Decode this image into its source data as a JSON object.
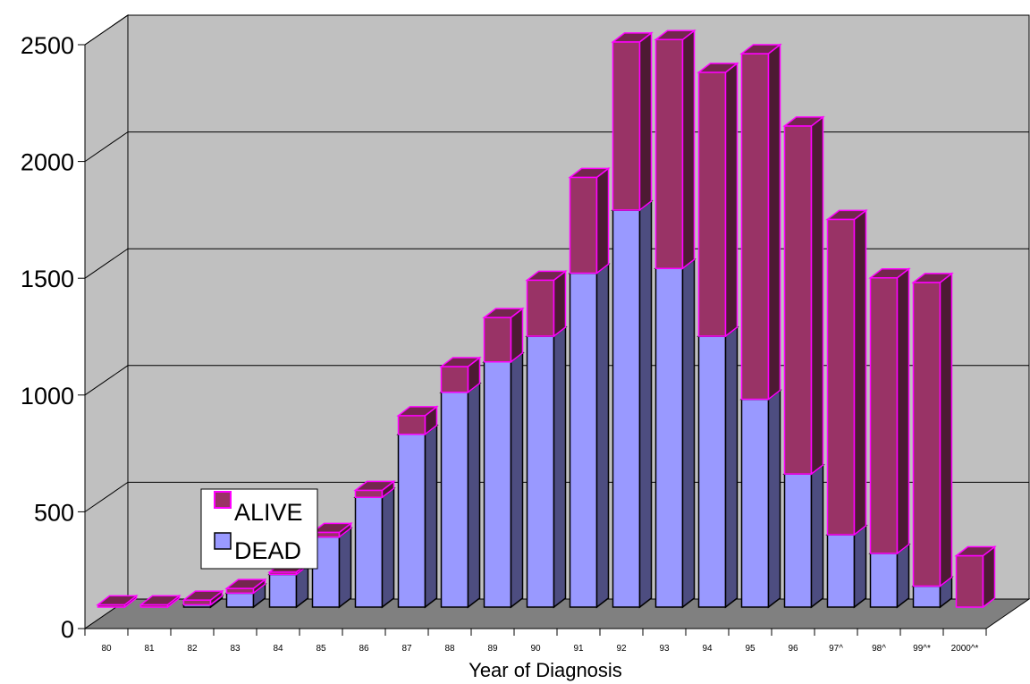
{
  "chart_data": {
    "type": "bar",
    "stacked": true,
    "three_d": true,
    "title": "",
    "xlabel": "Year of Diagnosis",
    "ylabel": "",
    "ylim": [
      0,
      2500
    ],
    "yticks": [
      "0",
      "500",
      "1000",
      "1500",
      "2000",
      "2500"
    ],
    "categories": [
      "80",
      "81",
      "82",
      "83",
      "84",
      "85",
      "86",
      "87",
      "88",
      "89",
      "90",
      "91",
      "92",
      "93",
      "94",
      "95",
      "96",
      "97^",
      "98^",
      "99^*",
      "2000^*"
    ],
    "series": [
      {
        "name": "DEAD",
        "values": [
          0,
          0,
          10,
          60,
          140,
          300,
          470,
          740,
          920,
          1050,
          1160,
          1430,
          1700,
          1450,
          1160,
          890,
          570,
          310,
          230,
          90,
          0
        ]
      },
      {
        "name": "ALIVE",
        "values": [
          10,
          10,
          20,
          20,
          10,
          20,
          30,
          80,
          110,
          190,
          240,
          410,
          720,
          980,
          1130,
          1480,
          1490,
          1350,
          1180,
          1300,
          220
        ]
      }
    ],
    "legend": {
      "placement": "lower-left inside",
      "entries": [
        "ALIVE",
        "DEAD"
      ]
    },
    "grid": true,
    "colors": {
      "DEAD": "#9999ff",
      "ALIVE": "#993366",
      "ALIVE_edge": "#ff00ff",
      "wall": "#c0c0c0",
      "floor": "#808080"
    }
  }
}
